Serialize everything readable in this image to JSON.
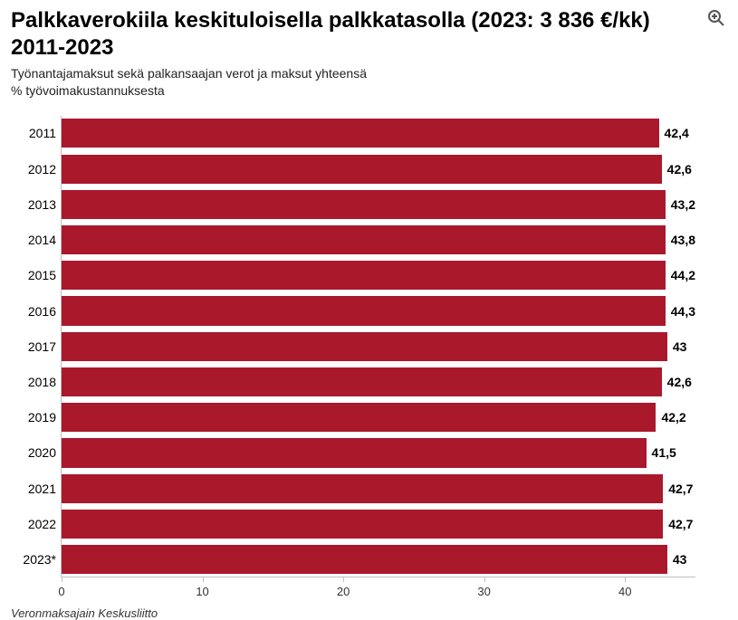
{
  "header": {
    "title": "Palkkaverokiila keskituloisella palkkatasolla (2023: 3 836 €/kk) 2011-2023",
    "subtitle_line1": "Työnantajamaksut sekä palkansaajan verot ja maksut yhteensä",
    "subtitle_line2": "% työvoimakustannuksesta",
    "zoom_icon": "zoom-icon"
  },
  "chart": {
    "type": "bar-horizontal",
    "bar_color": "#aa182c",
    "background_color": "#ffffff",
    "axis_color": "#bfbfbf",
    "label_color": "#000000",
    "value_fontweight": "bold",
    "value_fontsize": 14,
    "ylabel_fontsize": 14,
    "xlim": [
      0,
      45
    ],
    "xtick_step": 10,
    "xticks": [
      0,
      10,
      20,
      30,
      40
    ],
    "categories": [
      "2011",
      "2012",
      "2013",
      "2014",
      "2015",
      "2016",
      "2017",
      "2018",
      "2019",
      "2020",
      "2021",
      "2022",
      "2023*"
    ],
    "values": [
      42.4,
      42.6,
      43.2,
      43.8,
      44.2,
      44.3,
      43,
      42.6,
      42.2,
      41.5,
      42.7,
      42.7,
      43
    ],
    "value_labels": [
      "42,4",
      "42,6",
      "43,2",
      "43,8",
      "44,2",
      "44,3",
      "43",
      "42,6",
      "42,2",
      "41,5",
      "42,7",
      "42,7",
      "43"
    ],
    "bar_gap_ratio": 0.18
  },
  "source": "Veronmaksajain Keskusliitto"
}
